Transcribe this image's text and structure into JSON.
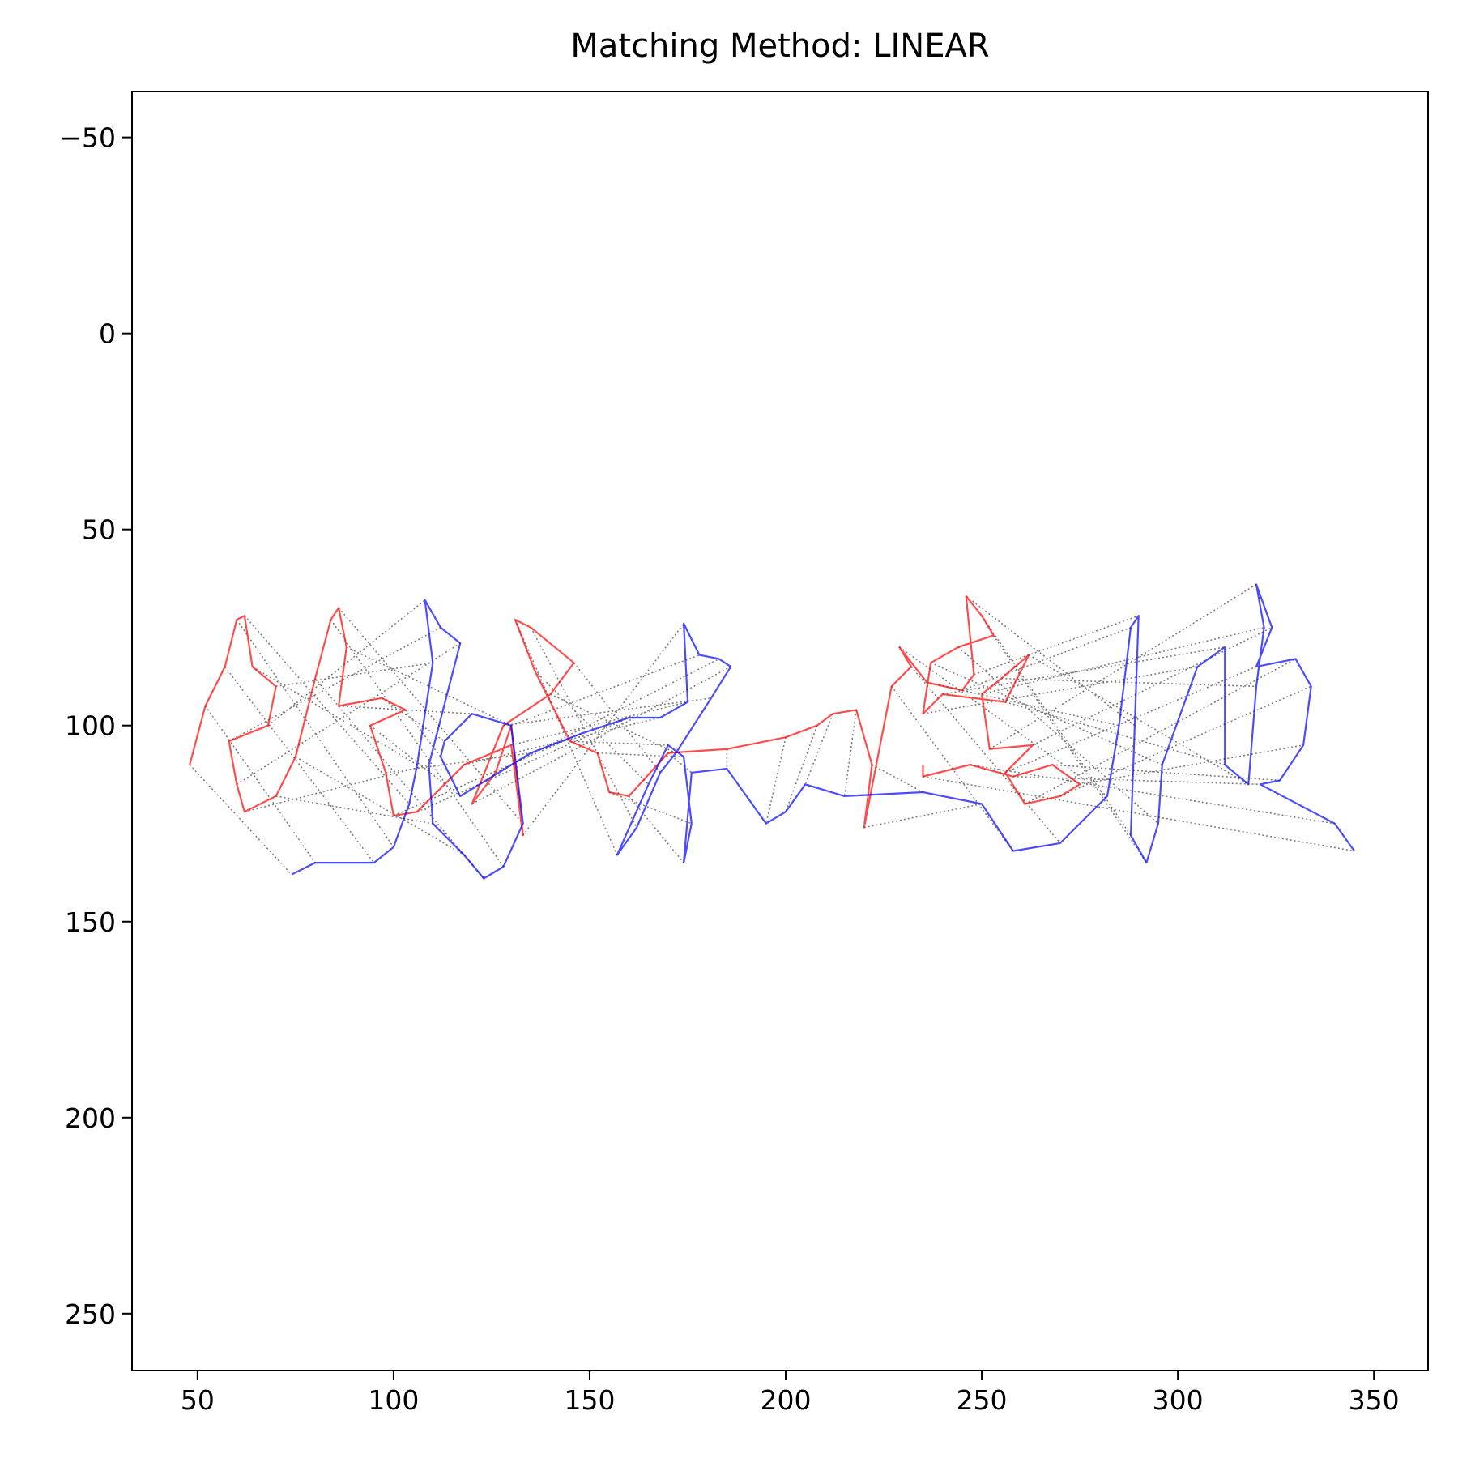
{
  "chart_data": {
    "type": "matching",
    "title": "Matching Method: LINEAR",
    "xlim": [
      33.3,
      363.8
    ],
    "ylim": [
      264.5,
      -61.7
    ],
    "xticks": [
      50,
      100,
      150,
      200,
      250,
      300,
      350
    ],
    "yticks": [
      {
        "value": -50,
        "label": "−50"
      },
      0,
      50,
      100,
      150,
      200,
      250
    ],
    "match_color": "#808080",
    "series": [
      {
        "color": "#ff0000",
        "x": [
          48,
          52,
          57,
          60,
          62,
          64,
          70,
          68,
          58,
          60,
          62,
          70,
          75,
          80,
          84,
          86,
          88,
          86,
          97,
          103,
          94,
          98,
          100,
          106,
          118,
          130,
          133,
          130,
          126,
          120,
          128,
          140,
          146,
          135,
          131,
          136,
          145,
          152,
          155,
          160,
          170,
          185,
          200,
          208,
          212,
          218,
          222,
          220,
          227,
          232,
          229,
          236,
          245,
          248,
          246,
          250,
          253,
          244,
          237,
          235,
          240,
          256,
          262,
          255,
          250,
          252,
          263,
          256,
          261,
          270,
          275,
          268,
          258,
          247,
          235,
          235
        ],
        "y": [
          110,
          95,
          85,
          73,
          72,
          85,
          90,
          100,
          104,
          115,
          122,
          118,
          108,
          88,
          73,
          70,
          80,
          95,
          93,
          96,
          100,
          112,
          123,
          122,
          110,
          105,
          128,
          100,
          112,
          120,
          100,
          92,
          84,
          75,
          73,
          86,
          104,
          107,
          117,
          118,
          107,
          106,
          103,
          100,
          97,
          96,
          110,
          126,
          90,
          85,
          80,
          89,
          91,
          87,
          67,
          72,
          77,
          80,
          84,
          97,
          92,
          94,
          82,
          88,
          92,
          106,
          105,
          112,
          120,
          118,
          115,
          110,
          113,
          110,
          113,
          110
        ]
      },
      {
        "color": "#0000ff",
        "x": [
          74,
          80,
          95,
          100,
          104,
          106,
          110,
          108,
          112,
          117,
          109,
          110,
          118,
          123,
          128,
          133,
          130,
          120,
          113,
          112,
          117,
          135,
          148,
          160,
          168,
          175,
          174,
          178,
          183,
          186,
          181,
          172,
          168,
          162,
          157,
          165,
          170,
          174,
          176,
          174,
          176,
          185,
          195,
          200,
          205,
          215,
          235,
          250,
          258,
          270,
          282,
          285,
          288,
          290,
          289,
          288,
          292,
          295,
          296,
          305,
          312,
          312,
          318,
          320,
          322,
          320,
          324,
          320,
          330,
          334,
          332,
          326,
          321,
          340,
          345
        ],
        "y": [
          138,
          135,
          135,
          131,
          120,
          110,
          84,
          68,
          75,
          79,
          110,
          125,
          133,
          139,
          136,
          125,
          100,
          97,
          104,
          108,
          118,
          107,
          102,
          98,
          98,
          94,
          74,
          82,
          83,
          85,
          93,
          107,
          112,
          126,
          133,
          115,
          105,
          108,
          125,
          135,
          112,
          111,
          125,
          122,
          115,
          118,
          117,
          120,
          132,
          130,
          118,
          100,
          75,
          72,
          100,
          128,
          135,
          125,
          110,
          85,
          80,
          110,
          115,
          90,
          75,
          64,
          75,
          85,
          83,
          90,
          105,
          114,
          115,
          125,
          132
        ]
      }
    ]
  }
}
